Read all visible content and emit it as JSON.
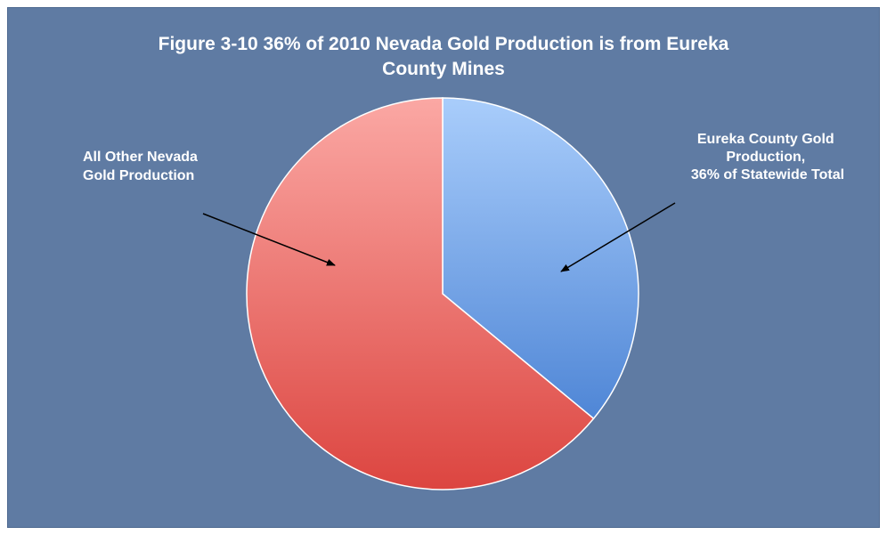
{
  "title": {
    "line1": "Figure 3-10 36% of 2010 Nevada Gold Production is from Eureka",
    "line2": "County Mines"
  },
  "chart_data": {
    "type": "pie",
    "title": "Figure 3-10 36% of 2010 Nevada Gold Production is from Eureka County Mines",
    "slices": [
      {
        "label_lines": [
          "Eureka County Gold",
          "Production,",
          "36% of Statewide Total"
        ],
        "value": 36,
        "color": "#7fa8e8"
      },
      {
        "label_lines": [
          "All Other Nevada",
          "Gold Production"
        ],
        "value": 64,
        "color": "#ee7b78"
      }
    ],
    "legend": "none"
  },
  "colors": {
    "background": "#5f7ba3",
    "eureka_light": "#a9cdfb",
    "eureka_dark": "#4f86d6",
    "other_light": "#fba8a4",
    "other_dark": "#dc4540"
  }
}
